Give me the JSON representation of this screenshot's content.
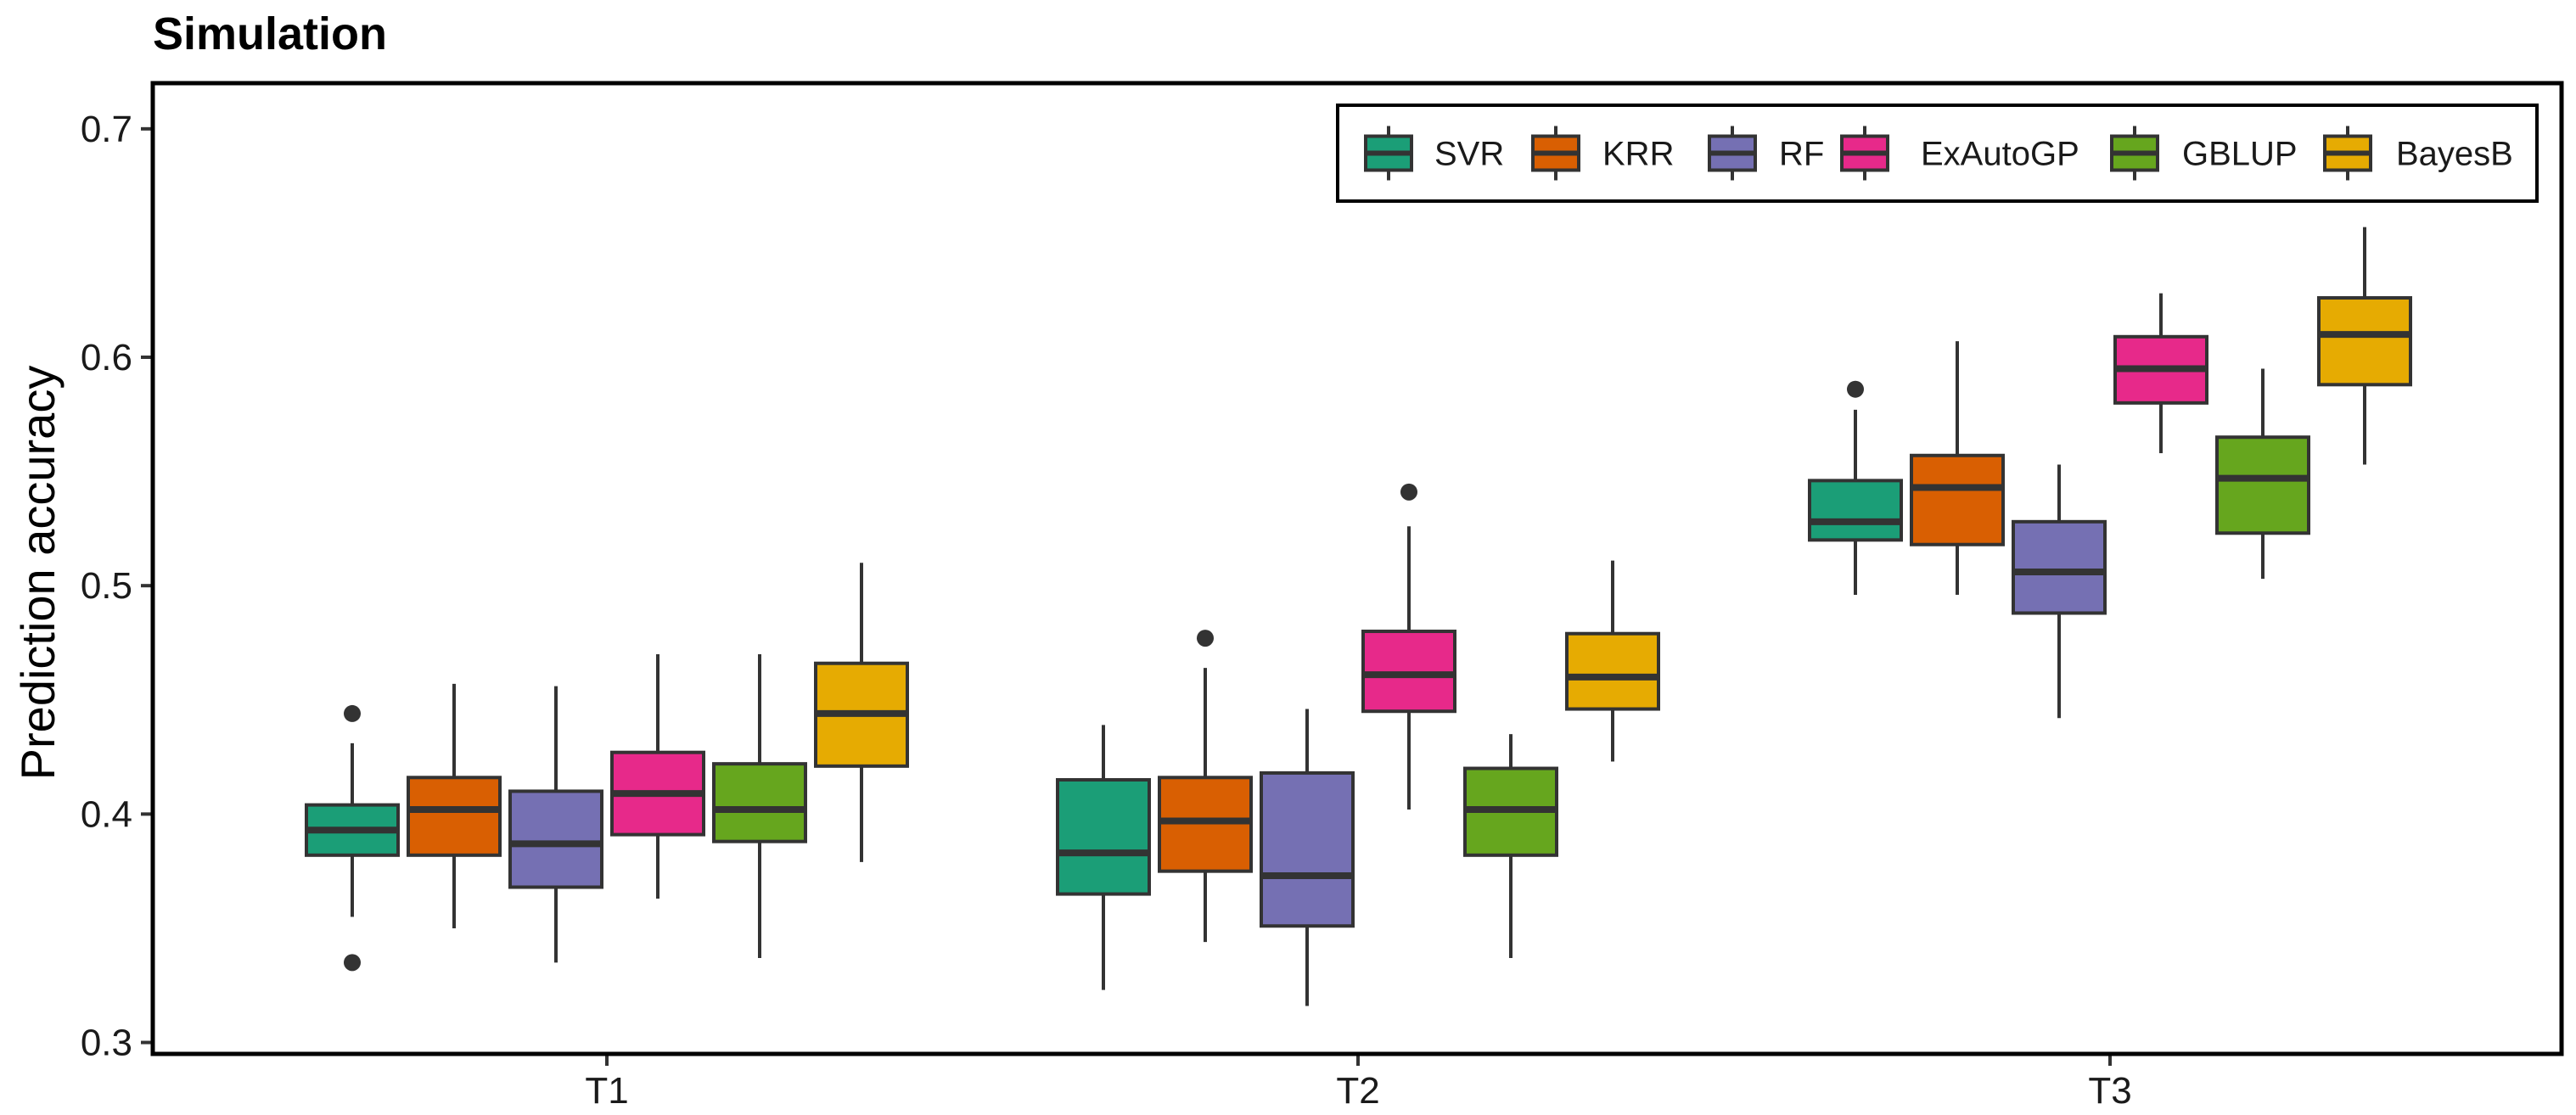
{
  "chart_data": {
    "type": "boxplot",
    "title": "Simulation",
    "xlabel": "",
    "ylabel": "Prediction accuracy",
    "ylim": [
      0.295,
      0.72
    ],
    "yticks": [
      0.3,
      0.4,
      0.5,
      0.6,
      0.7
    ],
    "ytick_labels": [
      "0.3",
      "0.4",
      "0.5",
      "0.6",
      "0.7"
    ],
    "categories": [
      "T1",
      "T2",
      "T3"
    ],
    "legend_position": "top-right",
    "series": [
      {
        "name": "SVR",
        "color": "#1b9e77",
        "boxes": [
          {
            "min": 0.355,
            "q1": 0.382,
            "median": 0.393,
            "q3": 0.404,
            "max": 0.431,
            "outliers": [
              0.444,
              0.335
            ]
          },
          {
            "min": 0.323,
            "q1": 0.365,
            "median": 0.383,
            "q3": 0.415,
            "max": 0.439,
            "outliers": []
          },
          {
            "min": 0.496,
            "q1": 0.52,
            "median": 0.528,
            "q3": 0.546,
            "max": 0.577,
            "outliers": [
              0.586
            ]
          }
        ]
      },
      {
        "name": "KRR",
        "color": "#d95f02",
        "boxes": [
          {
            "min": 0.35,
            "q1": 0.382,
            "median": 0.402,
            "q3": 0.416,
            "max": 0.457,
            "outliers": []
          },
          {
            "min": 0.344,
            "q1": 0.375,
            "median": 0.397,
            "q3": 0.416,
            "max": 0.464,
            "outliers": [
              0.477
            ]
          },
          {
            "min": 0.496,
            "q1": 0.518,
            "median": 0.543,
            "q3": 0.557,
            "max": 0.607,
            "outliers": []
          }
        ]
      },
      {
        "name": "RF",
        "color": "#7570b3",
        "boxes": [
          {
            "min": 0.335,
            "q1": 0.368,
            "median": 0.387,
            "q3": 0.41,
            "max": 0.456,
            "outliers": []
          },
          {
            "min": 0.316,
            "q1": 0.351,
            "median": 0.373,
            "q3": 0.418,
            "max": 0.446,
            "outliers": []
          },
          {
            "min": 0.442,
            "q1": 0.488,
            "median": 0.506,
            "q3": 0.528,
            "max": 0.553,
            "outliers": []
          }
        ]
      },
      {
        "name": "ExAutoGP",
        "color": "#e7298a",
        "boxes": [
          {
            "min": 0.363,
            "q1": 0.391,
            "median": 0.409,
            "q3": 0.427,
            "max": 0.47,
            "outliers": []
          },
          {
            "min": 0.402,
            "q1": 0.445,
            "median": 0.461,
            "q3": 0.48,
            "max": 0.526,
            "outliers": [
              0.541
            ]
          },
          {
            "min": 0.558,
            "q1": 0.58,
            "median": 0.595,
            "q3": 0.609,
            "max": 0.628,
            "outliers": []
          }
        ]
      },
      {
        "name": "GBLUP",
        "color": "#66a61e",
        "boxes": [
          {
            "min": 0.337,
            "q1": 0.388,
            "median": 0.402,
            "q3": 0.422,
            "max": 0.47,
            "outliers": []
          },
          {
            "min": 0.337,
            "q1": 0.382,
            "median": 0.402,
            "q3": 0.42,
            "max": 0.435,
            "outliers": []
          },
          {
            "min": 0.503,
            "q1": 0.523,
            "median": 0.547,
            "q3": 0.565,
            "max": 0.595,
            "outliers": []
          }
        ]
      },
      {
        "name": "BayesB",
        "color": "#e6ab02",
        "boxes": [
          {
            "min": 0.379,
            "q1": 0.421,
            "median": 0.444,
            "q3": 0.466,
            "max": 0.51,
            "outliers": []
          },
          {
            "min": 0.423,
            "q1": 0.446,
            "median": 0.46,
            "q3": 0.479,
            "max": 0.511,
            "outliers": []
          },
          {
            "min": 0.553,
            "q1": 0.588,
            "median": 0.61,
            "q3": 0.626,
            "max": 0.657,
            "outliers": []
          }
        ]
      }
    ]
  }
}
